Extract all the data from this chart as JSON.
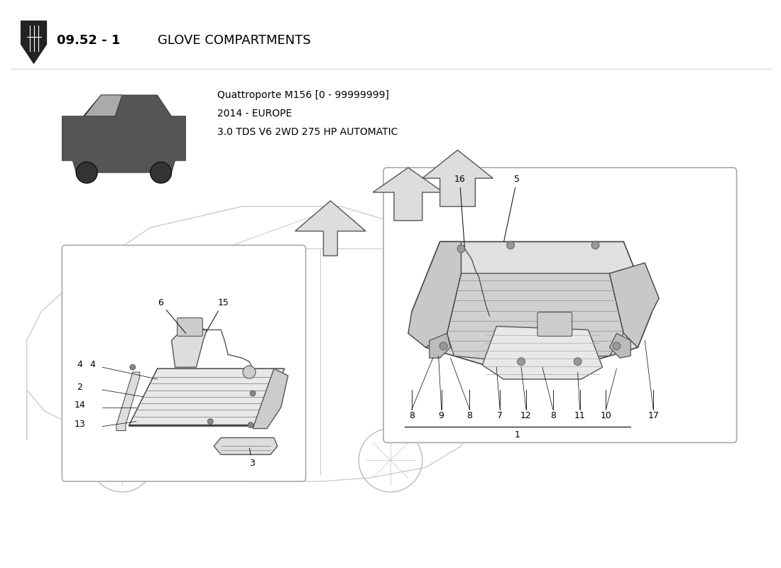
{
  "title_number": "09.52 - 1",
  "title_bold": "09.52 - 1",
  "title_text": "GLOVE COMPARTMENTS",
  "subtitle_line1": "Quattroporte M156 [0 - 99999999]",
  "subtitle_line2": "2014 - EUROPE",
  "subtitle_line3": "3.0 TDS V6 2WD 275 HP AUTOMATIC",
  "bg_color": "#ffffff",
  "border_color": "#cccccc",
  "text_color": "#000000",
  "part_numbers_left_box": [
    "6",
    "15",
    "4",
    "2",
    "14",
    "13",
    "3"
  ],
  "part_numbers_right_box": [
    "16",
    "5",
    "8",
    "9",
    "8",
    "7",
    "12",
    "8",
    "11",
    "10",
    "17",
    "1"
  ],
  "label_font_size": 9,
  "title_font_size": 13
}
